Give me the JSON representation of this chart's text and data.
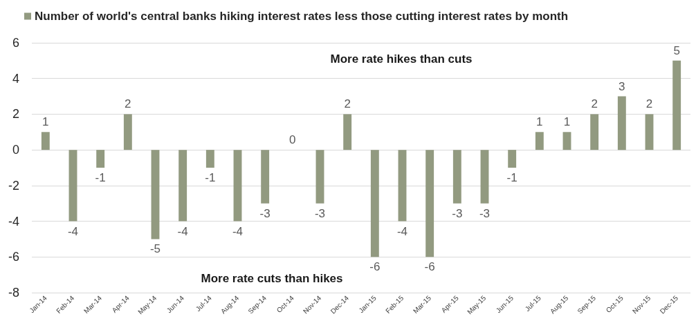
{
  "chart_data": {
    "type": "bar",
    "categories": [
      "Jan-14",
      "Feb-14",
      "Mar-14",
      "Apr-14",
      "May-14",
      "Jun-14",
      "Jul-14",
      "Aug-14",
      "Sep-14",
      "Oct-14",
      "Nov-14",
      "Dec-14",
      "Jan-15",
      "Feb-15",
      "Mar-15",
      "Apr-15",
      "May-15",
      "Jun-15",
      "Jul-15",
      "Aug-15",
      "Sep-15",
      "Oct-15",
      "Nov-15",
      "Dec-15"
    ],
    "series": [
      {
        "name": "Number of world's central banks hiking interest rates less those cutting interest rates by month",
        "color": "#929a80",
        "values": [
          1,
          -4,
          -1,
          2,
          -5,
          -4,
          -1,
          -4,
          -3,
          0,
          -3,
          2,
          -6,
          -4,
          -6,
          -3,
          -3,
          -1,
          1,
          1,
          2,
          3,
          2,
          5
        ]
      }
    ],
    "ylim": [
      -8,
      6
    ],
    "yticks": [
      -8,
      -6,
      -4,
      -2,
      0,
      2,
      4,
      6
    ],
    "grid": "y",
    "legend": "top left",
    "data_labels": true,
    "annotations": [
      "More rate hikes than cuts",
      "More rate cuts than hikes"
    ]
  }
}
